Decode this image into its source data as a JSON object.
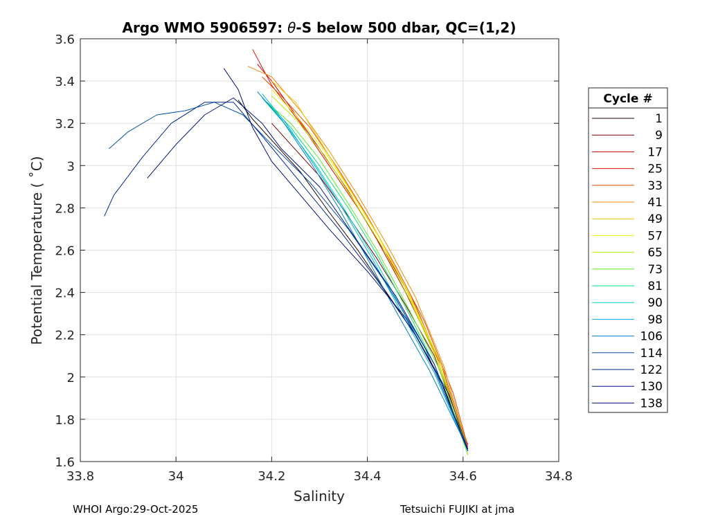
{
  "chart_data": {
    "type": "line",
    "title_prefix": "Argo WMO 5906597: ",
    "title_theta": "θ",
    "title_suffix": "-S below 500 dbar,  QC=(1,2)",
    "xlabel": "Salinity",
    "ylabel": "Potential Temperature ( ˚C)",
    "xlim": [
      33.8,
      34.8
    ],
    "ylim": [
      1.6,
      3.6
    ],
    "xticks": [
      "33.8",
      "34",
      "34.2",
      "34.4",
      "34.6",
      "34.8"
    ],
    "xtick_values": [
      33.8,
      34.0,
      34.2,
      34.4,
      34.6,
      34.8
    ],
    "yticks": [
      "1.6",
      "1.8",
      "2",
      "2.2",
      "2.4",
      "2.6",
      "2.8",
      "3",
      "3.2",
      "3.4",
      "3.6"
    ],
    "ytick_values": [
      1.6,
      1.8,
      2.0,
      2.2,
      2.4,
      2.6,
      2.8,
      3.0,
      3.2,
      3.4,
      3.6
    ],
    "grid": true,
    "legend": {
      "title": "Cycle #",
      "position": "right",
      "entries": [
        {
          "label": "1",
          "color": "#1e0000"
        },
        {
          "label": "9",
          "color": "#7a0000"
        },
        {
          "label": "17",
          "color": "#c80000"
        },
        {
          "label": "25",
          "color": "#e01000"
        },
        {
          "label": "33",
          "color": "#ee4a00"
        },
        {
          "label": "41",
          "color": "#f08a00"
        },
        {
          "label": "49",
          "color": "#f2c800"
        },
        {
          "label": "57",
          "color": "#eef000"
        },
        {
          "label": "65",
          "color": "#b0f000"
        },
        {
          "label": "73",
          "color": "#60ec20"
        },
        {
          "label": "81",
          "color": "#00e080"
        },
        {
          "label": "90",
          "color": "#00d2c0"
        },
        {
          "label": "98",
          "color": "#00b0e8"
        },
        {
          "label": "106",
          "color": "#0080c8"
        },
        {
          "label": "114",
          "color": "#0050a8"
        },
        {
          "label": "122",
          "color": "#002890"
        },
        {
          "label": "130",
          "color": "#001480"
        },
        {
          "label": "138",
          "color": "#00107a"
        }
      ]
    },
    "series": [
      {
        "name": "1",
        "color": "#1e0000",
        "x": [
          34.13,
          34.16,
          34.2,
          34.26,
          34.32,
          34.38,
          34.44,
          34.5,
          34.56,
          34.61
        ],
        "y": [
          3.31,
          3.22,
          3.12,
          2.97,
          2.78,
          2.6,
          2.4,
          2.2,
          1.95,
          1.66
        ]
      },
      {
        "name": "9",
        "color": "#7a0000",
        "x": [
          34.2,
          34.24,
          34.3,
          34.36,
          34.42,
          34.48,
          34.54,
          34.61
        ],
        "y": [
          3.2,
          3.1,
          2.95,
          2.76,
          2.56,
          2.34,
          2.1,
          1.67
        ]
      },
      {
        "name": "17",
        "color": "#c80000",
        "x": [
          34.17,
          34.2,
          34.25,
          34.3,
          34.36,
          34.42,
          34.48,
          34.54,
          34.61
        ],
        "y": [
          3.48,
          3.4,
          3.24,
          3.08,
          2.88,
          2.65,
          2.4,
          2.12,
          1.68
        ]
      },
      {
        "name": "25",
        "color": "#e01000",
        "x": [
          34.16,
          34.2,
          34.26,
          34.32,
          34.38,
          34.44,
          34.5,
          34.56,
          34.61
        ],
        "y": [
          3.55,
          3.38,
          3.2,
          3.0,
          2.8,
          2.58,
          2.34,
          2.02,
          1.66
        ]
      },
      {
        "name": "33",
        "color": "#ee4a00",
        "x": [
          34.18,
          34.22,
          34.28,
          34.34,
          34.4,
          34.46,
          34.52,
          34.58,
          34.61
        ],
        "y": [
          3.42,
          3.33,
          3.18,
          2.98,
          2.76,
          2.52,
          2.26,
          1.92,
          1.67
        ]
      },
      {
        "name": "41",
        "color": "#f08a00",
        "x": [
          34.15,
          34.2,
          34.26,
          34.32,
          34.38,
          34.44,
          34.5,
          34.56,
          34.61
        ],
        "y": [
          3.47,
          3.42,
          3.26,
          3.07,
          2.86,
          2.63,
          2.38,
          2.05,
          1.66
        ]
      },
      {
        "name": "49",
        "color": "#f2c800",
        "x": [
          34.2,
          34.25,
          34.3,
          34.36,
          34.42,
          34.48,
          34.54,
          34.61
        ],
        "y": [
          3.4,
          3.3,
          3.12,
          2.9,
          2.68,
          2.42,
          2.12,
          1.66
        ]
      },
      {
        "name": "57",
        "color": "#eef000",
        "x": [
          34.2,
          34.25,
          34.31,
          34.37,
          34.43,
          34.49,
          34.55,
          34.61
        ],
        "y": [
          3.36,
          3.24,
          3.07,
          2.86,
          2.64,
          2.38,
          2.08,
          1.66
        ]
      },
      {
        "name": "65",
        "color": "#b0f000",
        "x": [
          34.2,
          34.25,
          34.31,
          34.37,
          34.43,
          34.49,
          34.55,
          34.61
        ],
        "y": [
          3.33,
          3.22,
          3.05,
          2.84,
          2.62,
          2.36,
          2.06,
          1.65
        ]
      },
      {
        "name": "73",
        "color": "#60ec20",
        "x": [
          34.19,
          34.24,
          34.3,
          34.36,
          34.42,
          34.48,
          34.55,
          34.61
        ],
        "y": [
          3.3,
          3.2,
          3.03,
          2.82,
          2.6,
          2.35,
          2.04,
          1.63
        ]
      },
      {
        "name": "81",
        "color": "#00e080",
        "x": [
          34.19,
          34.24,
          34.3,
          34.36,
          34.42,
          34.48,
          34.54,
          34.61
        ],
        "y": [
          3.3,
          3.18,
          3.0,
          2.8,
          2.58,
          2.33,
          2.06,
          1.65
        ]
      },
      {
        "name": "90",
        "color": "#00d2c0",
        "x": [
          34.18,
          34.23,
          34.29,
          34.35,
          34.41,
          34.47,
          34.54,
          34.61
        ],
        "y": [
          3.32,
          3.19,
          3.01,
          2.8,
          2.58,
          2.33,
          2.04,
          1.65
        ]
      },
      {
        "name": "98",
        "color": "#00b0e8",
        "x": [
          34.18,
          34.23,
          34.29,
          34.35,
          34.41,
          34.47,
          34.54,
          34.61
        ],
        "y": [
          3.34,
          3.2,
          3.0,
          2.79,
          2.56,
          2.31,
          2.02,
          1.65
        ]
      },
      {
        "name": "106",
        "color": "#0080c8",
        "x": [
          34.17,
          34.22,
          34.28,
          34.34,
          34.4,
          34.46,
          34.53,
          34.61
        ],
        "y": [
          3.35,
          3.22,
          3.02,
          2.8,
          2.56,
          2.31,
          2.03,
          1.66
        ]
      },
      {
        "name": "114",
        "color": "#0050a8",
        "x": [
          33.86,
          33.9,
          33.96,
          34.02,
          34.08,
          34.14,
          34.2,
          34.28,
          34.36,
          34.44,
          34.52,
          34.61
        ],
        "y": [
          3.08,
          3.16,
          3.24,
          3.26,
          3.3,
          3.24,
          3.1,
          2.92,
          2.7,
          2.44,
          2.14,
          1.66
        ]
      },
      {
        "name": "122",
        "color": "#002890",
        "x": [
          33.85,
          33.87,
          33.93,
          33.99,
          34.06,
          34.12,
          34.18,
          34.26,
          34.34,
          34.42,
          34.5,
          34.57,
          34.61
        ],
        "y": [
          2.76,
          2.86,
          3.04,
          3.2,
          3.3,
          3.3,
          3.14,
          2.92,
          2.7,
          2.46,
          2.2,
          1.92,
          1.66
        ]
      },
      {
        "name": "130",
        "color": "#001480",
        "x": [
          33.94,
          34.0,
          34.06,
          34.12,
          34.18,
          34.22,
          34.3,
          34.38,
          34.46,
          34.54,
          34.61
        ],
        "y": [
          2.94,
          3.1,
          3.24,
          3.32,
          3.2,
          3.08,
          2.9,
          2.64,
          2.38,
          2.06,
          1.65
        ]
      },
      {
        "name": "138",
        "color": "#00107a",
        "x": [
          34.1,
          34.13,
          34.16,
          34.2,
          34.26,
          34.32,
          34.4,
          34.48,
          34.55,
          34.61
        ],
        "y": [
          3.46,
          3.36,
          3.18,
          3.02,
          2.86,
          2.7,
          2.5,
          2.28,
          2.0,
          1.65
        ]
      }
    ]
  },
  "footer": {
    "left": "WHOI Argo:29-Oct-2025",
    "right": "Tetsuichi FUJIKI at jma"
  }
}
